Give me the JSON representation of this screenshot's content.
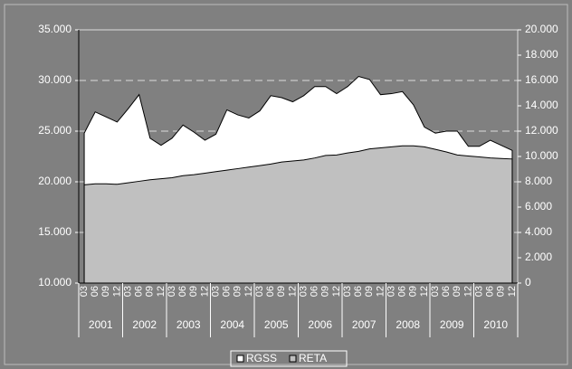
{
  "chart_data": {
    "type": "area",
    "categories": [
      "03",
      "06",
      "09",
      "12",
      "03",
      "06",
      "09",
      "12",
      "03",
      "06",
      "09",
      "12",
      "03",
      "06",
      "09",
      "12",
      "03",
      "06",
      "09",
      "12",
      "03",
      "06",
      "09",
      "12",
      "03",
      "06",
      "09",
      "12",
      "03",
      "06",
      "09",
      "12",
      "03",
      "06",
      "09",
      "12",
      "03",
      "06",
      "09",
      "12"
    ],
    "category_groups": [
      "2001",
      "2002",
      "2003",
      "2004",
      "2005",
      "2006",
      "2007",
      "2008",
      "2009",
      "2010"
    ],
    "series": [
      {
        "name": "RGSS",
        "color": "#ffffff",
        "axis": "y2",
        "values": [
          11840,
          13520,
          13120,
          12720,
          13760,
          14880,
          11440,
          10880,
          11440,
          12480,
          11920,
          11280,
          11760,
          13680,
          13280,
          13040,
          13600,
          14800,
          14640,
          14320,
          14800,
          15520,
          15520,
          14960,
          15520,
          16320,
          16080,
          14880,
          14960,
          15120,
          14080,
          12320,
          11840,
          12000,
          12000,
          10800,
          10800,
          11280,
          10880,
          10480
        ]
      },
      {
        "name": "RETA",
        "color": "#c0c0c0",
        "axis": "y",
        "values": [
          19700,
          19800,
          19800,
          19750,
          19900,
          20050,
          20200,
          20300,
          20400,
          20600,
          20700,
          20850,
          21000,
          21150,
          21300,
          21450,
          21600,
          21750,
          21950,
          22050,
          22150,
          22350,
          22600,
          22650,
          22850,
          23000,
          23250,
          23350,
          23450,
          23550,
          23550,
          23450,
          23200,
          22950,
          22650,
          22550,
          22450,
          22350,
          22300,
          22250
        ]
      }
    ],
    "ylim": [
      10000,
      35000
    ],
    "yticks": [
      {
        "value": 10000,
        "label": "10.000"
      },
      {
        "value": 15000,
        "label": "15.000"
      },
      {
        "value": 20000,
        "label": "20.000"
      },
      {
        "value": 25000,
        "label": "25.000"
      },
      {
        "value": 30000,
        "label": "30.000"
      },
      {
        "value": 35000,
        "label": "35.000"
      }
    ],
    "y2lim": [
      0,
      20000
    ],
    "y2ticks": [
      0,
      {
        "value": 2000,
        "label": "2.000"
      },
      {
        "value": 4000,
        "label": "4.000"
      },
      {
        "value": 6000,
        "label": "6.000"
      },
      {
        "value": 8000,
        "label": "8.000"
      },
      {
        "value": 10000,
        "label": "10.000"
      },
      {
        "value": 12000,
        "label": "12.000"
      },
      {
        "value": 14000,
        "label": "14.000"
      },
      {
        "value": 16000,
        "label": "16.000"
      },
      {
        "value": 18000,
        "label": "18.000"
      },
      {
        "value": 20000,
        "label": "20.000"
      }
    ],
    "grid": true,
    "legend": "bottom"
  }
}
